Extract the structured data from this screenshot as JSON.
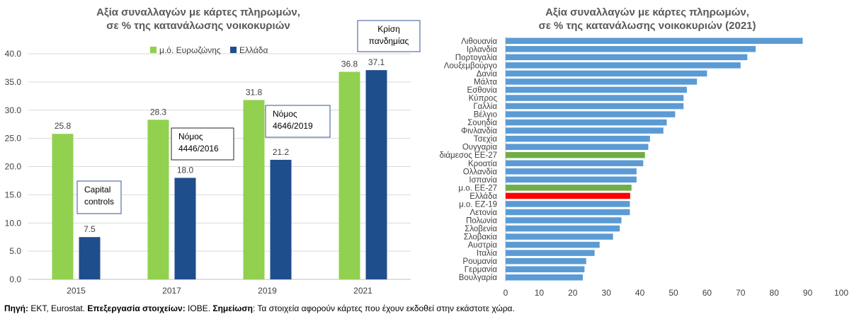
{
  "chart_data": [
    {
      "type": "bar",
      "title": [
        "Αξία συναλλαγών με κάρτες πληρωμών,",
        "σε % της κατανάλωσης νοικοκυριών"
      ],
      "categories": [
        "2015",
        "2017",
        "2019",
        "2021"
      ],
      "series": [
        {
          "name": "μ.ό. Ευρωζώνης",
          "values": [
            25.8,
            28.3,
            31.8,
            36.8
          ],
          "color": "#92D050"
        },
        {
          "name": "Ελλάδα",
          "values": [
            7.5,
            18.0,
            21.2,
            37.1
          ],
          "color": "#1F4E8C"
        }
      ],
      "ylim": [
        0,
        40
      ],
      "yticks": [
        "0.0",
        "5.0",
        "10.0",
        "15.0",
        "20.0",
        "25.0",
        "30.0",
        "35.0",
        "40.0"
      ],
      "grid": true,
      "legend": "top",
      "annotations": [
        {
          "lines": [
            "Capital",
            "controls"
          ]
        },
        {
          "lines": [
            "Νόμος",
            "4446/2016"
          ]
        },
        {
          "lines": [
            "Νόμος",
            "4646/2019"
          ]
        },
        {
          "lines": [
            "Κρίση",
            "πανδημίας"
          ]
        }
      ]
    },
    {
      "type": "bar",
      "orientation": "horizontal",
      "title": [
        "Αξία συναλλαγών με κάρτες πληρωμών,",
        "σε % της κατανάλωσης νοικοκυριών (2021)"
      ],
      "categories": [
        "Λιθουανία",
        "Ιρλανδία",
        "Πορτογαλία",
        "Λουξεμβούργο",
        "Δανία",
        "Μάλτα",
        "Εσθονία",
        "Κύπρος",
        "Γαλλία",
        "Βέλγιο",
        "Σουηδία",
        "Φινλανδία",
        "Τσεχία",
        "Ουγγαρία",
        "διάμεσος ΕΕ-27",
        "Κροατία",
        "Ολλανδία",
        "Ισπανία",
        "μ.ο. ΕΕ-27",
        "Ελλάδα",
        "μ.ο. ΕΖ-19",
        "Λετονία",
        "Πολωνία",
        "Σλοβενία",
        "Σλοβακία",
        "Αυστρία",
        "Ιταλία",
        "Ρουμανία",
        "Γερμανία",
        "Βουλγαρία"
      ],
      "values": [
        88.5,
        74.5,
        72,
        70,
        60,
        57,
        54,
        53,
        53,
        50.5,
        48,
        47,
        43,
        42.5,
        41.5,
        41,
        39,
        39,
        37.5,
        37.1,
        37,
        37,
        34.5,
        34,
        32,
        28,
        26.5,
        24,
        23.5,
        23
      ],
      "highlight": {
        "διάμεσος ΕΕ-27": "#70AD47",
        "μ.ο. ΕΕ-27": "#70AD47",
        "Ελλάδα": "#FF0000"
      },
      "color": "#5B9BD5",
      "xlim": [
        0,
        100
      ],
      "xticks": [
        "0",
        "10",
        "20",
        "30",
        "40",
        "50",
        "60",
        "70",
        "80",
        "90",
        "100"
      ]
    }
  ],
  "footer": {
    "source_label": "Πηγή:",
    "source_text": " ΕΚΤ, Eurostat. ",
    "processing_label": "Επεξεργασία στοιχείων:",
    "processing_text": " ΙΟΒΕ. ",
    "note_label": "Σημείωση",
    "note_text": ": Τα στοιχεία αφορούν κάρτες που έχουν εκδοθεί στην εκάστοτε χώρα."
  }
}
